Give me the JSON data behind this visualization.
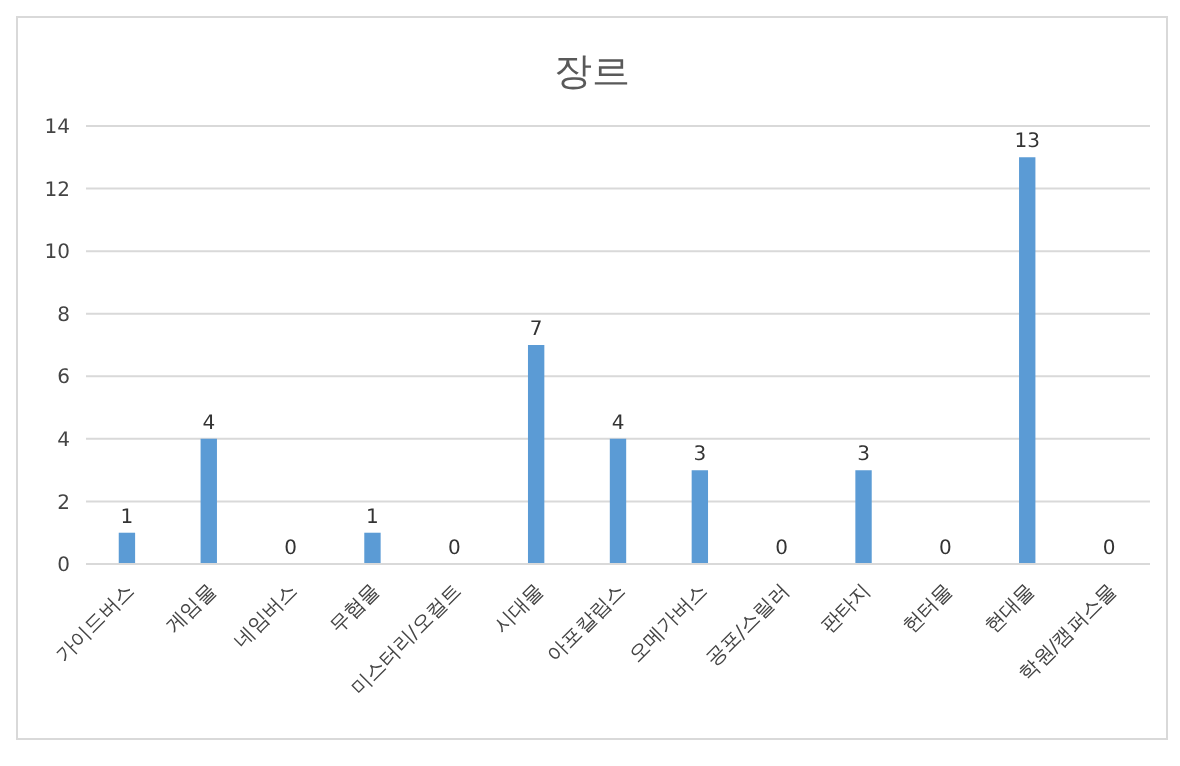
{
  "chart_data": {
    "type": "bar",
    "title": "장르",
    "categories": [
      "가이드버스",
      "게임물",
      "네임버스",
      "무협물",
      "미스터리/오컬트",
      "시대물",
      "아포칼립스",
      "오메가버스",
      "공포/스릴러",
      "판타지",
      "헌터물",
      "현대물",
      "학원/캠퍼스물"
    ],
    "values": [
      1,
      4,
      0,
      1,
      0,
      7,
      4,
      3,
      0,
      3,
      0,
      13,
      0
    ],
    "color": "#5b9bd5",
    "ylim": [
      0,
      14
    ],
    "yticks": [
      0,
      2,
      4,
      6,
      8,
      10,
      12,
      14
    ],
    "grid": "y",
    "data_labels": true
  }
}
